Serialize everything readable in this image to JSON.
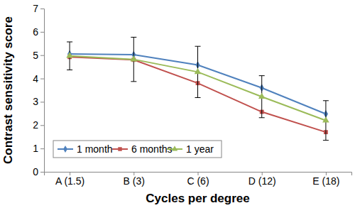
{
  "chart_data": {
    "type": "line",
    "x_label": "Cycles per degree",
    "y_label": "Contrast sensitivity score",
    "categories": [
      "A (1.5)",
      "B (3)",
      "C (6)",
      "D (12)",
      "E (18)"
    ],
    "series": [
      {
        "name": "1 month",
        "color": "#4f81bd",
        "marker": "diamond",
        "values": [
          5.05,
          5.02,
          4.58,
          3.6,
          2.48
        ]
      },
      {
        "name": "6 months",
        "color": "#c0504d",
        "marker": "square",
        "values": [
          4.92,
          4.8,
          3.8,
          2.57,
          1.7
        ]
      },
      {
        "name": "1 year",
        "color": "#9bbb59",
        "marker": "triangle",
        "values": [
          4.97,
          4.82,
          4.28,
          3.22,
          2.2
        ],
        "errors": [
          0.6,
          0.95,
          1.1,
          0.9,
          0.85
        ]
      }
    ],
    "ylim": [
      0,
      7
    ],
    "yticks": [
      0,
      1,
      2,
      3,
      4,
      5,
      6,
      7
    ],
    "grid": false,
    "legend": "bottom-left"
  }
}
